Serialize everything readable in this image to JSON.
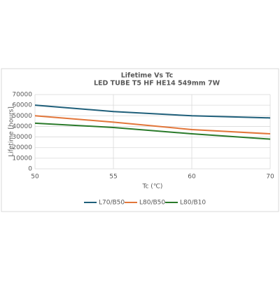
{
  "chart_data": {
    "type": "line",
    "title": "Lifetime Vs Tc",
    "subtitle": "LED TUBE T5 HF HE14 549mm 7W",
    "x_label": "Tc (℃)",
    "y_label": "Lifetime [hours]",
    "categories": [
      "50",
      "55",
      "60",
      "70"
    ],
    "series": [
      {
        "name": "L70/B50",
        "color": "#1f5f7a",
        "values": [
          60000,
          54000,
          50000,
          48000
        ]
      },
      {
        "name": "L80/B50",
        "color": "#e2763a",
        "values": [
          50000,
          44000,
          37000,
          33000
        ]
      },
      {
        "name": "L80/B10",
        "color": "#2a7a2a",
        "values": [
          43000,
          39000,
          33000,
          28000
        ]
      }
    ],
    "ylim": [
      0,
      70000
    ],
    "yticks": [
      0,
      10000,
      20000,
      30000,
      40000,
      50000,
      60000,
      70000
    ],
    "grid": true,
    "legend": "bottom"
  }
}
